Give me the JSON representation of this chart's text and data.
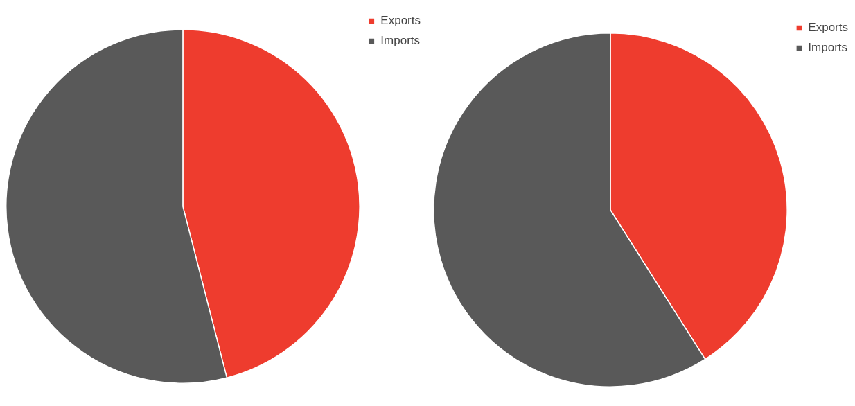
{
  "chart_data": [
    {
      "type": "pie",
      "categories": [
        "Exports",
        "Imports"
      ],
      "values": [
        46,
        54
      ],
      "colors": [
        "#ee3c2e",
        "#595959"
      ],
      "legend": "top right"
    },
    {
      "type": "pie",
      "categories": [
        "Exports",
        "Imports"
      ],
      "values": [
        41,
        59
      ],
      "colors": [
        "#ee3c2e",
        "#595959"
      ],
      "legend": "top right"
    }
  ]
}
